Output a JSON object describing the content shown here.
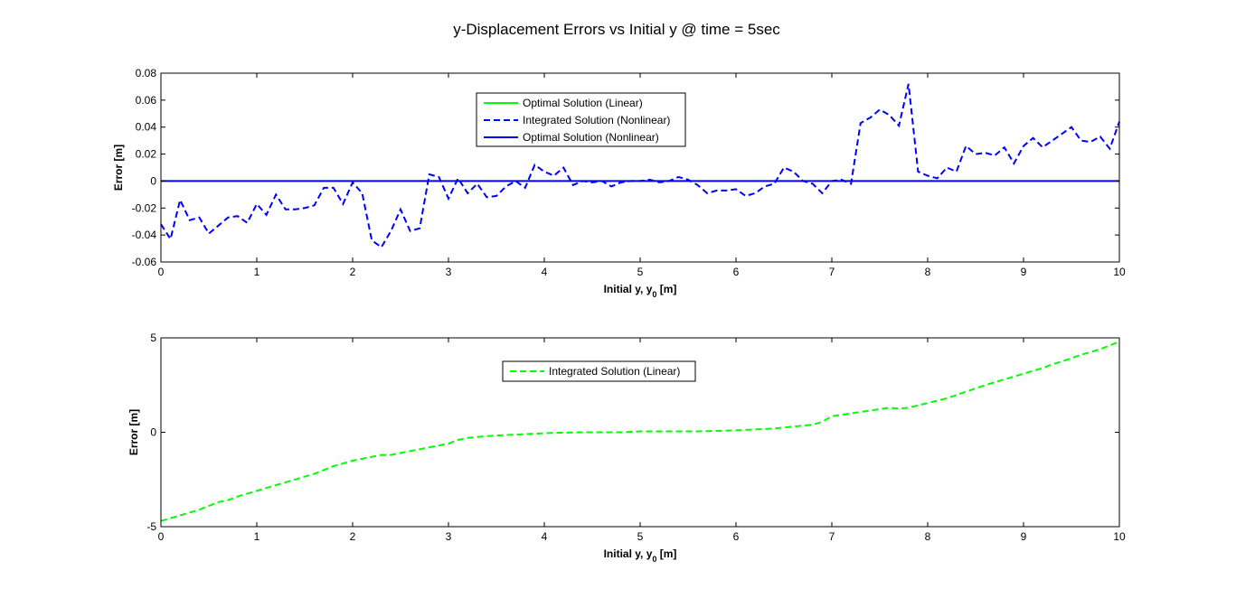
{
  "figure": {
    "title": "y-Displacement Errors vs Initial y @ time = 5sec"
  },
  "chart_data": [
    {
      "type": "line",
      "xlabel": "Initial y, y",
      "xlabel_sub": "0",
      "xlabel_unit": " [m]",
      "ylabel": "Error [m]",
      "xlim": [
        0,
        10
      ],
      "ylim": [
        -0.06,
        0.08
      ],
      "xticks": [
        "0",
        "1",
        "2",
        "3",
        "4",
        "5",
        "6",
        "7",
        "8",
        "9",
        "10"
      ],
      "yticks": [
        "-0.06",
        "-0.04",
        "-0.02",
        "0",
        "0.02",
        "0.04",
        "0.06",
        "0.08"
      ],
      "legend_position": "top-center",
      "series": [
        {
          "name": "Optimal Solution (Linear)",
          "color": "#00ff00",
          "style": "solid",
          "x": [],
          "y": []
        },
        {
          "name": "Integrated Solution (Nonlinear)",
          "color": "#0000ff",
          "style": "dashed",
          "x": [
            0,
            0.1,
            0.2,
            0.3,
            0.4,
            0.5,
            0.6,
            0.7,
            0.8,
            0.9,
            1.0,
            1.1,
            1.2,
            1.3,
            1.4,
            1.5,
            1.6,
            1.7,
            1.8,
            1.9,
            2.0,
            2.1,
            2.2,
            2.3,
            2.4,
            2.5,
            2.6,
            2.7,
            2.8,
            2.9,
            3.0,
            3.1,
            3.2,
            3.3,
            3.4,
            3.5,
            3.6,
            3.7,
            3.8,
            3.9,
            4.0,
            4.1,
            4.2,
            4.3,
            4.4,
            4.5,
            4.6,
            4.7,
            4.8,
            4.9,
            5.0,
            5.1,
            5.2,
            5.3,
            5.4,
            5.5,
            5.6,
            5.7,
            5.8,
            5.9,
            6.0,
            6.1,
            6.2,
            6.3,
            6.4,
            6.5,
            6.6,
            6.7,
            6.8,
            6.9,
            7.0,
            7.1,
            7.2,
            7.3,
            7.4,
            7.5,
            7.6,
            7.7,
            7.8,
            7.9,
            8.0,
            8.1,
            8.2,
            8.3,
            8.4,
            8.5,
            8.6,
            8.7,
            8.8,
            8.9,
            9.0,
            9.1,
            9.2,
            9.3,
            9.4,
            9.5,
            9.6,
            9.7,
            9.8,
            9.9,
            10.0
          ],
          "y": [
            -0.032,
            -0.043,
            -0.014,
            -0.029,
            -0.027,
            -0.039,
            -0.033,
            -0.027,
            -0.026,
            -0.031,
            -0.017,
            -0.025,
            -0.01,
            -0.021,
            -0.021,
            -0.02,
            -0.018,
            -0.005,
            -0.005,
            -0.017,
            -0.001,
            -0.009,
            -0.044,
            -0.049,
            -0.037,
            -0.021,
            -0.037,
            -0.035,
            0.005,
            0.003,
            -0.013,
            0.002,
            -0.009,
            -0.002,
            -0.012,
            -0.011,
            -0.004,
            0.0,
            -0.005,
            0.012,
            0.007,
            0.004,
            0.01,
            -0.003,
            0.0,
            -0.001,
            0.0,
            -0.004,
            -0.001,
            0.0,
            0.0,
            0.001,
            -0.001,
            0.0,
            0.003,
            0.001,
            -0.003,
            -0.009,
            -0.007,
            -0.007,
            -0.006,
            -0.011,
            -0.009,
            -0.004,
            -0.002,
            0.01,
            0.007,
            0.0,
            -0.002,
            -0.009,
            0.0,
            0.001,
            -0.002,
            0.043,
            0.047,
            0.053,
            0.049,
            0.041,
            0.072,
            0.007,
            0.004,
            0.002,
            0.01,
            0.007,
            0.026,
            0.02,
            0.021,
            0.019,
            0.025,
            0.013,
            0.026,
            0.032,
            0.025,
            0.03,
            0.035,
            0.04,
            0.03,
            0.029,
            0.033,
            0.024,
            0.044
          ]
        },
        {
          "name": "Optimal Solution (Nonlinear)",
          "color": "#0000ff",
          "style": "solid",
          "x": [
            0,
            10
          ],
          "y": [
            0,
            0
          ]
        }
      ]
    },
    {
      "type": "line",
      "xlabel": "Initial y, y",
      "xlabel_sub": "0",
      "xlabel_unit": " [m]",
      "ylabel": "Error [m]",
      "xlim": [
        0,
        10
      ],
      "ylim": [
        -5,
        5
      ],
      "xticks": [
        "0",
        "1",
        "2",
        "3",
        "4",
        "5",
        "6",
        "7",
        "8",
        "9",
        "10"
      ],
      "yticks": [
        "-5",
        "0",
        "5"
      ],
      "legend_position": "top-center",
      "series": [
        {
          "name": "Integrated Solution (Linear)",
          "color": "#00ff00",
          "style": "dashed",
          "x": [
            0,
            0.2,
            0.4,
            0.6,
            0.7,
            0.8,
            1.0,
            1.2,
            1.4,
            1.6,
            1.8,
            2.0,
            2.2,
            2.3,
            2.4,
            2.6,
            2.8,
            3.0,
            3.1,
            3.2,
            3.4,
            3.6,
            3.8,
            4.0,
            4.2,
            4.4,
            4.6,
            4.8,
            5.0,
            5.2,
            5.4,
            5.6,
            5.8,
            6.0,
            6.2,
            6.4,
            6.6,
            6.8,
            6.9,
            7.0,
            7.2,
            7.4,
            7.6,
            7.7,
            7.8,
            8.0,
            8.2,
            8.4,
            8.6,
            8.8,
            9.0,
            9.2,
            9.3,
            9.4,
            9.6,
            9.8,
            10.0
          ],
          "y": [
            -4.7,
            -4.4,
            -4.1,
            -3.7,
            -3.6,
            -3.4,
            -3.1,
            -2.8,
            -2.5,
            -2.2,
            -1.8,
            -1.5,
            -1.3,
            -1.2,
            -1.2,
            -1.0,
            -0.8,
            -0.6,
            -0.4,
            -0.3,
            -0.2,
            -0.15,
            -0.1,
            -0.05,
            -0.02,
            0.0,
            0.0,
            0.0,
            0.05,
            0.05,
            0.05,
            0.05,
            0.07,
            0.1,
            0.15,
            0.2,
            0.3,
            0.4,
            0.55,
            0.85,
            1.0,
            1.15,
            1.3,
            1.25,
            1.3,
            1.55,
            1.8,
            2.15,
            2.5,
            2.8,
            3.1,
            3.4,
            3.6,
            3.75,
            4.1,
            4.4,
            4.8
          ]
        }
      ]
    }
  ]
}
